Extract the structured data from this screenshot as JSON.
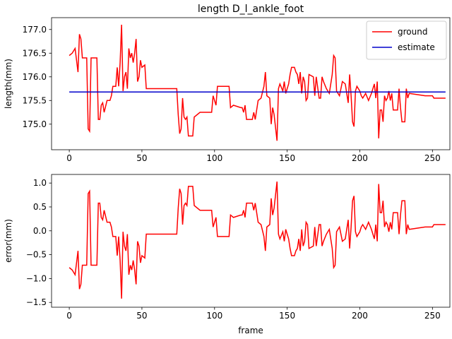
{
  "chart_data": [
    {
      "type": "line",
      "title": "length D_l_ankle_foot",
      "ylabel": "length(mm)",
      "legend": "upper right",
      "xlim": [
        -12.2,
        262
      ],
      "xticks": [
        0,
        50,
        100,
        150,
        200,
        250
      ],
      "ylim": [
        174.46,
        177.25
      ],
      "yticks": [
        {
          "value": 175.0,
          "label": "175.0"
        },
        {
          "value": 175.5,
          "label": "175.5"
        },
        {
          "value": 176.0,
          "label": "176.0"
        },
        {
          "value": 176.5,
          "label": "176.5"
        },
        {
          "value": 177.0,
          "label": "177.0"
        }
      ],
      "series": [
        {
          "name": "ground",
          "color": "#ff0000",
          "x": [
            0,
            2,
            4,
            6,
            7,
            8,
            9,
            12,
            13,
            14,
            15,
            19,
            20,
            21,
            22,
            23,
            24,
            26,
            28,
            29,
            30,
            32,
            33,
            34,
            35,
            36,
            37,
            38,
            39,
            40,
            41,
            42,
            43,
            44,
            45,
            46,
            47,
            48,
            49,
            50,
            52,
            53,
            74,
            75,
            76,
            77,
            78,
            79,
            80,
            81,
            82,
            85,
            86,
            90,
            98,
            99,
            100,
            101,
            102,
            110,
            111,
            113,
            118,
            119,
            120,
            121,
            122,
            126,
            127,
            128,
            130,
            132,
            134,
            135,
            136,
            138,
            139,
            140,
            141,
            143,
            144,
            145,
            147,
            148,
            149,
            151,
            152,
            153,
            155,
            156,
            157,
            158,
            159,
            160,
            161,
            162,
            163,
            164,
            165,
            168,
            169,
            170,
            172,
            173,
            174,
            175,
            177,
            179,
            181,
            182,
            183,
            184,
            186,
            188,
            190,
            192,
            193,
            194,
            195,
            196,
            197,
            198,
            200,
            201,
            202,
            204,
            206,
            208,
            209,
            210,
            211,
            212,
            213,
            214,
            215,
            216,
            217,
            218,
            219,
            220,
            221,
            222,
            223,
            226,
            227,
            228,
            229,
            231,
            232,
            233,
            234,
            245,
            250,
            251,
            259
          ],
          "values": [
            176.45,
            176.5,
            176.6,
            176.1,
            176.9,
            176.8,
            176.4,
            176.4,
            174.9,
            174.85,
            176.4,
            176.4,
            175.1,
            175.1,
            175.4,
            175.45,
            175.25,
            175.5,
            175.5,
            175.6,
            175.8,
            175.8,
            176.2,
            175.8,
            176.3,
            177.1,
            175.7,
            176.0,
            176.1,
            175.75,
            176.6,
            176.4,
            176.5,
            176.3,
            176.5,
            176.8,
            175.9,
            176.0,
            176.35,
            176.2,
            176.25,
            175.75,
            175.75,
            175.2,
            174.8,
            174.9,
            175.55,
            175.15,
            175.1,
            175.15,
            174.75,
            174.75,
            175.15,
            175.25,
            175.25,
            175.6,
            175.5,
            175.4,
            175.8,
            175.8,
            175.35,
            175.4,
            175.35,
            175.35,
            175.25,
            175.4,
            175.1,
            175.1,
            175.25,
            175.1,
            175.5,
            175.55,
            175.8,
            176.1,
            175.6,
            175.55,
            175.0,
            175.35,
            175.2,
            174.65,
            175.75,
            175.85,
            175.7,
            175.9,
            175.65,
            175.85,
            176.05,
            176.2,
            176.2,
            176.1,
            176.05,
            175.85,
            176.1,
            175.65,
            176.0,
            175.9,
            175.5,
            175.55,
            176.05,
            176.0,
            175.6,
            176.0,
            175.55,
            175.55,
            176.0,
            175.9,
            175.75,
            175.65,
            176.05,
            176.45,
            176.4,
            175.7,
            175.6,
            175.9,
            175.85,
            175.45,
            176.05,
            175.6,
            175.05,
            174.95,
            175.7,
            175.8,
            175.7,
            175.6,
            175.55,
            175.65,
            175.5,
            175.65,
            175.75,
            175.85,
            175.55,
            175.9,
            174.7,
            175.3,
            175.3,
            175.05,
            175.6,
            175.5,
            175.55,
            175.7,
            175.5,
            175.65,
            175.3,
            175.3,
            175.75,
            175.35,
            175.05,
            175.05,
            175.75,
            175.55,
            175.65,
            175.6,
            175.6,
            175.55,
            175.55
          ]
        },
        {
          "name": "estimate",
          "color": "#0000cc",
          "x": [
            0,
            259
          ],
          "values": [
            175.68,
            175.68
          ]
        }
      ]
    },
    {
      "type": "line",
      "xlabel": "frame",
      "ylabel": "error(mm)",
      "xlim": [
        -12.2,
        262
      ],
      "xticks": [
        0,
        50,
        100,
        150,
        200,
        250
      ],
      "ylim": [
        -1.6,
        1.18
      ],
      "yticks": [
        {
          "value": -1.5,
          "label": "−1.5"
        },
        {
          "value": -1.0,
          "label": "−1.0"
        },
        {
          "value": -0.5,
          "label": "−0.5"
        },
        {
          "value": 0.0,
          "label": "0.0"
        },
        {
          "value": 0.5,
          "label": "0.5"
        },
        {
          "value": 1.0,
          "label": "1.0"
        }
      ],
      "series": [
        {
          "color": "#ff0000",
          "x": [
            0,
            2,
            4,
            6,
            7,
            8,
            9,
            12,
            13,
            14,
            15,
            19,
            20,
            21,
            22,
            23,
            24,
            26,
            28,
            29,
            30,
            32,
            33,
            34,
            35,
            36,
            37,
            38,
            39,
            40,
            41,
            42,
            43,
            44,
            45,
            46,
            47,
            48,
            49,
            50,
            52,
            53,
            74,
            75,
            76,
            77,
            78,
            79,
            80,
            81,
            82,
            85,
            86,
            90,
            98,
            99,
            100,
            101,
            102,
            110,
            111,
            113,
            118,
            119,
            120,
            121,
            122,
            126,
            127,
            128,
            130,
            132,
            134,
            135,
            136,
            138,
            139,
            140,
            141,
            143,
            144,
            145,
            147,
            148,
            149,
            151,
            152,
            153,
            155,
            156,
            157,
            158,
            159,
            160,
            161,
            162,
            163,
            164,
            165,
            168,
            169,
            170,
            172,
            173,
            174,
            175,
            177,
            179,
            181,
            182,
            183,
            184,
            186,
            188,
            190,
            192,
            193,
            194,
            195,
            196,
            197,
            198,
            200,
            201,
            202,
            204,
            206,
            208,
            209,
            210,
            211,
            212,
            213,
            214,
            215,
            216,
            217,
            218,
            219,
            220,
            221,
            222,
            223,
            226,
            227,
            228,
            229,
            231,
            232,
            233,
            234,
            245,
            250,
            251,
            259
          ],
          "values": [
            -0.77,
            -0.82,
            -0.92,
            -0.42,
            -1.22,
            -1.12,
            -0.72,
            -0.72,
            0.78,
            0.83,
            -0.72,
            -0.72,
            0.58,
            0.58,
            0.28,
            0.23,
            0.43,
            0.18,
            0.18,
            0.08,
            -0.12,
            -0.12,
            -0.52,
            -0.12,
            -0.62,
            -1.42,
            -0.02,
            -0.32,
            -0.42,
            -0.07,
            -0.92,
            -0.72,
            -0.82,
            -0.62,
            -0.82,
            -1.12,
            -0.22,
            -0.32,
            -0.67,
            -0.52,
            -0.57,
            -0.07,
            -0.07,
            0.48,
            0.88,
            0.78,
            0.13,
            0.53,
            0.58,
            0.53,
            0.93,
            0.93,
            0.53,
            0.43,
            0.43,
            0.08,
            0.18,
            0.28,
            -0.12,
            -0.12,
            0.33,
            0.28,
            0.33,
            0.33,
            0.43,
            0.28,
            0.58,
            0.58,
            0.43,
            0.58,
            0.18,
            0.13,
            -0.12,
            -0.42,
            0.08,
            0.13,
            0.68,
            0.33,
            0.48,
            1.03,
            -0.07,
            -0.17,
            -0.02,
            -0.22,
            0.03,
            -0.17,
            -0.37,
            -0.52,
            -0.52,
            -0.42,
            -0.37,
            -0.17,
            -0.42,
            0.03,
            -0.32,
            -0.22,
            0.18,
            0.13,
            -0.37,
            -0.32,
            0.08,
            -0.32,
            0.13,
            0.13,
            -0.32,
            -0.22,
            -0.07,
            0.03,
            -0.37,
            -0.77,
            -0.72,
            -0.02,
            0.08,
            -0.22,
            -0.17,
            0.23,
            -0.37,
            0.08,
            0.63,
            0.73,
            -0.02,
            -0.12,
            -0.02,
            0.08,
            0.13,
            0.03,
            0.18,
            0.03,
            -0.07,
            -0.17,
            0.13,
            -0.22,
            0.98,
            0.38,
            0.38,
            0.63,
            0.08,
            0.18,
            0.13,
            -0.02,
            0.18,
            0.03,
            0.38,
            0.38,
            -0.07,
            0.33,
            0.63,
            0.63,
            -0.07,
            0.13,
            0.03,
            0.08,
            0.08,
            0.13,
            0.13
          ]
        }
      ]
    }
  ]
}
